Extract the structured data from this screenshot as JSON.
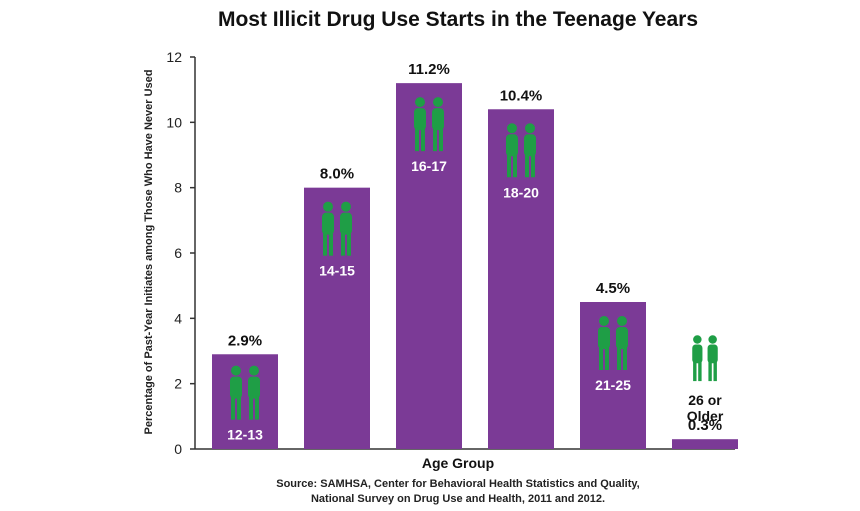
{
  "chart_data": {
    "type": "bar",
    "title": "Most Illicit Drug Use Starts in the Teenage Years",
    "categories": [
      "12-13",
      "14-15",
      "16-17",
      "18-20",
      "21-25",
      "26 or Older"
    ],
    "values": [
      2.9,
      8.0,
      11.2,
      10.4,
      4.5,
      0.3
    ],
    "value_labels": [
      "2.9%",
      "8.0%",
      "11.2%",
      "10.4%",
      "4.5%",
      "0.3%"
    ],
    "xlabel": "Age Group",
    "ylabel": "Percentage of Past-Year Initiates among Those Who Have Never Used",
    "ylim": [
      0,
      12
    ],
    "yticks": [
      0,
      2,
      4,
      6,
      8,
      10,
      12
    ],
    "grid": false,
    "legend": "none",
    "source_line1": "Source: SAMHSA, Center for Behavioral Health Statistics and Quality,",
    "source_line2": "National Survey on Drug Use and Health, 2011 and 2012.",
    "colors": {
      "bar": "#7b3a96",
      "figure": "#1f9e46",
      "axis": "#333333"
    },
    "icon": "two-people-silhouette-icon"
  }
}
